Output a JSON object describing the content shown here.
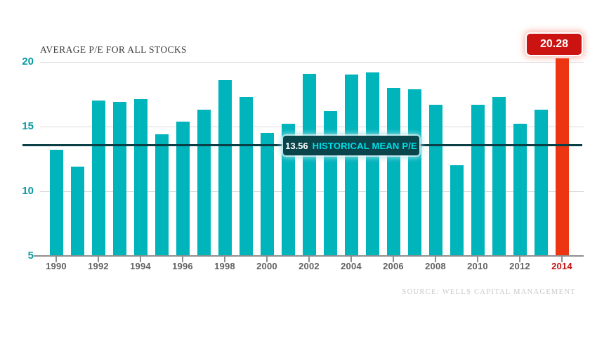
{
  "title": "AVERAGE P/E FOR ALL STOCKS",
  "source": "SOURCE: WELLS CAPITAL MANAGEMENT",
  "mean_callout": {
    "value": "13.56",
    "label": "HISTORICAL MEAN P/E"
  },
  "peak_callout": {
    "value": "20.28"
  },
  "colors": {
    "bar_teal": "#00b4bc",
    "bar_red": "#ee3512",
    "badge_red": "#cb1312",
    "mean_line": "#0a3f46",
    "mean_bg": "#0a454b",
    "mean_cyan": "#00dfe8",
    "axis_teal": "#0899a2",
    "x_gray": "#616161",
    "x_red": "#c41111",
    "gridline": "#d9d9d9",
    "axis_line": "#8f8f8f",
    "title_color": "#3c3c3c",
    "source_color": "#c9c9c9"
  },
  "chart_data": {
    "type": "bar",
    "title": "AVERAGE P/E FOR ALL STOCKS",
    "categories": [
      1990,
      1991,
      1992,
      1993,
      1994,
      1995,
      1996,
      1997,
      1998,
      1999,
      2000,
      2001,
      2002,
      2003,
      2004,
      2005,
      2006,
      2007,
      2008,
      2009,
      2010,
      2011,
      2012,
      2013,
      2014
    ],
    "values": [
      13.2,
      11.9,
      17.0,
      16.9,
      17.1,
      14.4,
      15.4,
      16.3,
      18.6,
      17.3,
      14.5,
      15.2,
      19.1,
      16.2,
      19.0,
      19.2,
      18.0,
      17.9,
      16.7,
      12.0,
      16.7,
      17.3,
      15.2,
      16.3,
      20.28
    ],
    "highlight_category": 2014,
    "highlight_value_label": "20.28",
    "historical_mean": 13.56,
    "historical_mean_label": "HISTORICAL MEAN P/E",
    "ylim": [
      5,
      20.5
    ],
    "y_ticks": [
      20,
      15,
      10,
      5
    ],
    "x_tick_years": [
      1990,
      1992,
      1994,
      1996,
      1998,
      2000,
      2002,
      2004,
      2006,
      2008,
      2010,
      2012,
      2014
    ],
    "grid": "horizontal",
    "legend": "none"
  }
}
